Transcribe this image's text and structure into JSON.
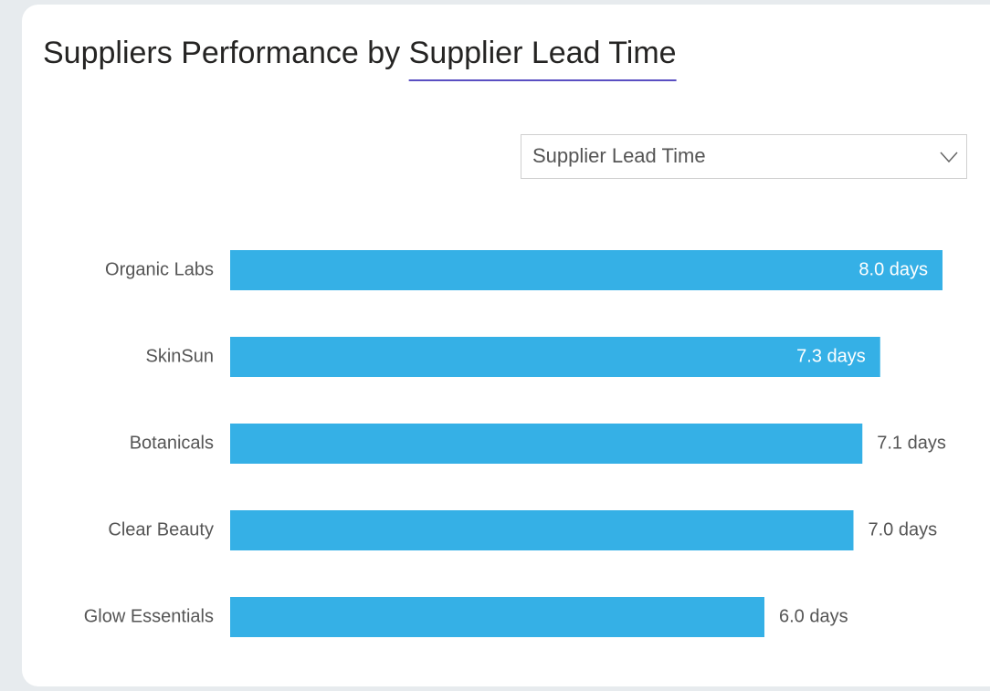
{
  "chart_data": {
    "type": "bar",
    "orientation": "horizontal",
    "title": "Suppliers Performance by",
    "title_metric": "Supplier Lead Time",
    "dropdown": "Supplier Lead Time",
    "categories": [
      "Organic Labs",
      "SkinSun",
      "Botanicals",
      "Clear Beauty",
      "Glow Essentials"
    ],
    "values": [
      8.0,
      7.3,
      7.1,
      7.0,
      6.0
    ],
    "value_labels": [
      "8.0 days",
      "7.3 days",
      "7.1 days",
      "7.0 days",
      "6.0 days"
    ],
    "color": "#35b0e6"
  }
}
